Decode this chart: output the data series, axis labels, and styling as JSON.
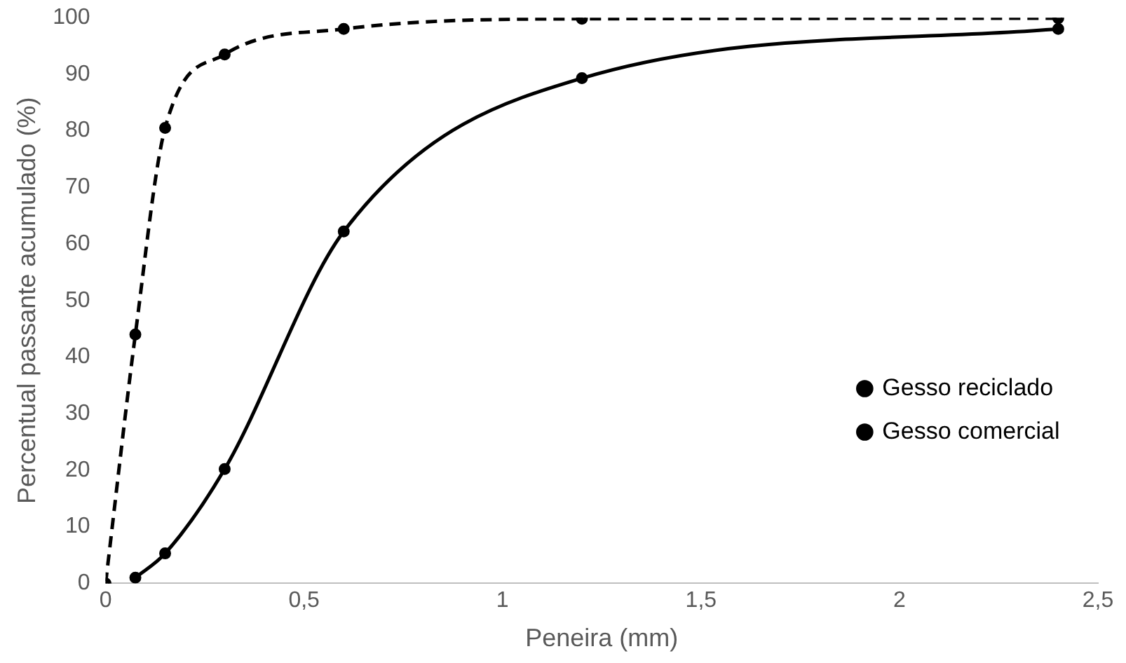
{
  "chart_data": {
    "type": "line",
    "xlabel": "Peneira (mm)",
    "ylabel": "Percentual passante acumulado (%)",
    "xlim": [
      0,
      2.5
    ],
    "xticks": [
      0,
      {
        "value": 0.5,
        "label": "0,5"
      },
      1,
      {
        "value": 1.5,
        "label": "1,5"
      },
      2,
      {
        "value": 2.5,
        "label": "2,5"
      }
    ],
    "ylim": [
      0,
      100
    ],
    "yticks": [
      0,
      10,
      20,
      30,
      40,
      50,
      60,
      70,
      80,
      90,
      100
    ],
    "grid": false,
    "legend": "right",
    "marker": "circle",
    "series": [
      {
        "name": "Gesso reciclado",
        "color": "#000000",
        "line_style": "solid",
        "x": [
          0.075,
          0.15,
          0.3,
          0.6,
          1.2,
          2.4
        ],
        "values": [
          1,
          5.3,
          20.2,
          62.2,
          89.3,
          98
        ]
      },
      {
        "name": "Gesso comercial",
        "color": "#000000",
        "line_style": "dashed",
        "x": [
          0,
          0.075,
          0.15,
          0.3,
          0.6,
          1.2,
          2.4
        ],
        "values": [
          0,
          44,
          80.5,
          93.5,
          98,
          99.8,
          99.9
        ]
      }
    ]
  }
}
